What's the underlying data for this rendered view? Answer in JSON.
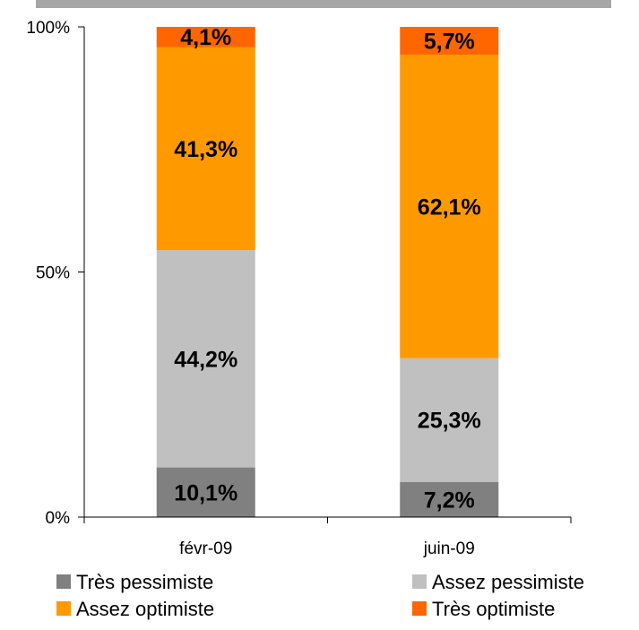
{
  "chart_data": {
    "type": "bar",
    "stacked": true,
    "percent_stacked": true,
    "categories": [
      "févr-09",
      "juin-09"
    ],
    "series": [
      {
        "name": "Très pessimiste",
        "values": [
          10.1,
          7.2
        ],
        "labels": [
          "10,1%",
          "7,2%"
        ],
        "color": "#808080"
      },
      {
        "name": "Assez pessimiste",
        "values": [
          44.2,
          25.3
        ],
        "labels": [
          "44,2%",
          "25,3%"
        ],
        "color": "#c0c0c0"
      },
      {
        "name": "Assez optimiste",
        "values": [
          41.3,
          62.1
        ],
        "labels": [
          "41,3%",
          "62,1%"
        ],
        "color": "#ff9900"
      },
      {
        "name": "Très optimiste",
        "values": [
          4.1,
          5.7
        ],
        "labels": [
          "4,1%",
          "5,7%"
        ],
        "color": "#ff6600"
      }
    ],
    "ylim": [
      0,
      100
    ],
    "yticks": [
      {
        "value": 0,
        "label": "0%"
      },
      {
        "value": 50,
        "label": "50%"
      },
      {
        "value": 100,
        "label": "100%"
      }
    ],
    "grid": false,
    "legend_position": "bottom",
    "title": "",
    "xlabel": "",
    "ylabel": ""
  }
}
